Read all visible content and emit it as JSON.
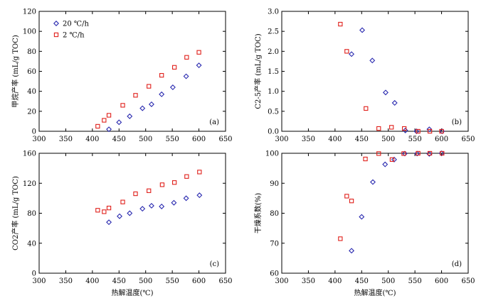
{
  "series_styles": [
    {
      "name": "20 ℃/h",
      "marker": "diamond",
      "color": "#2b2bb0"
    },
    {
      "name": "2 ℃/h",
      "marker": "square",
      "color": "#e0201b"
    }
  ],
  "chart_data": [
    {
      "id": "a",
      "type": "scatter",
      "panel_label": "(a)",
      "title": "",
      "xlabel": "",
      "ylabel": "甲烷产率 (mL/g TOC)",
      "xlim": [
        300,
        650
      ],
      "ylim": [
        0,
        120
      ],
      "xticks": [
        300,
        350,
        400,
        450,
        500,
        550,
        600,
        650
      ],
      "yticks": [
        0,
        20,
        40,
        60,
        80,
        100,
        120
      ],
      "legend": {
        "position": "top-left",
        "entries": [
          "20 ℃/h",
          "2 ℃/h"
        ]
      },
      "series": [
        {
          "name": "20 ℃/h",
          "x": [
            431,
            450,
            470,
            494,
            511,
            530,
            551,
            576,
            600
          ],
          "y": [
            2,
            9,
            15,
            23,
            27,
            37,
            44,
            55,
            66
          ]
        },
        {
          "name": "2 ℃/h",
          "x": [
            410,
            422,
            431,
            457,
            481,
            506,
            530,
            554,
            577,
            600
          ],
          "y": [
            5,
            11,
            16,
            26,
            36,
            45,
            56,
            64,
            74,
            79
          ]
        }
      ]
    },
    {
      "id": "b",
      "type": "scatter",
      "panel_label": "(b)",
      "title": "",
      "xlabel": "",
      "ylabel": "C2-5产率 (mL/g TOC)",
      "xlim": [
        300,
        650
      ],
      "ylim": [
        0,
        3
      ],
      "xticks": [
        300,
        350,
        400,
        450,
        500,
        550,
        600,
        650
      ],
      "yticks": [
        0.0,
        0.5,
        1.0,
        1.5,
        2.0,
        2.5,
        3.0
      ],
      "series": [
        {
          "name": "20 ℃/h",
          "x": [
            431,
            451,
            470,
            495,
            512,
            532,
            553,
            577,
            601
          ],
          "y": [
            1.93,
            2.53,
            1.77,
            0.97,
            0.71,
            0.02,
            0.0,
            0.05,
            0.0
          ]
        },
        {
          "name": "2 ℃/h",
          "x": [
            410,
            422,
            458,
            482,
            506,
            530,
            556,
            578,
            600
          ],
          "y": [
            2.68,
            2.0,
            0.57,
            0.07,
            0.1,
            0.07,
            0.0,
            0.0,
            0.0
          ]
        }
      ]
    },
    {
      "id": "c",
      "type": "scatter",
      "panel_label": "(c)",
      "title": "",
      "xlabel": "热解温度(℃)",
      "ylabel": "CO2产率 (mL/g TOC)",
      "xlim": [
        300,
        650
      ],
      "ylim": [
        0,
        160
      ],
      "xticks": [
        300,
        350,
        400,
        450,
        500,
        550,
        600,
        650
      ],
      "yticks": [
        0,
        40,
        80,
        120,
        160
      ],
      "series": [
        {
          "name": "20 ℃/h",
          "x": [
            431,
            451,
            470,
            494,
            511,
            530,
            553,
            576,
            601
          ],
          "y": [
            68,
            76,
            80,
            86,
            90,
            89,
            94,
            100,
            104
          ]
        },
        {
          "name": "2 ℃/h",
          "x": [
            410,
            422,
            431,
            457,
            481,
            506,
            531,
            554,
            577,
            601
          ],
          "y": [
            84,
            82,
            87,
            95,
            106,
            110,
            118,
            121,
            129,
            135
          ]
        }
      ]
    },
    {
      "id": "d",
      "type": "scatter",
      "panel_label": "(d)",
      "title": "",
      "xlabel": "热解温度(℃)",
      "ylabel": "干燥系数(%)",
      "xlim": [
        300,
        650
      ],
      "ylim": [
        60,
        100
      ],
      "xticks": [
        300,
        350,
        400,
        450,
        500,
        550,
        600,
        650
      ],
      "yticks": [
        60,
        70,
        80,
        90,
        100
      ],
      "series": [
        {
          "name": "20 ℃/h",
          "x": [
            431,
            450,
            471,
            494,
            511,
            531,
            554,
            577,
            600
          ],
          "y": [
            67.5,
            78.8,
            90.4,
            96.3,
            97.9,
            99.9,
            99.9,
            99.8,
            100
          ]
        },
        {
          "name": "2 ℃/h",
          "x": [
            410,
            422,
            431,
            457,
            482,
            507,
            529,
            556,
            578,
            601
          ],
          "y": [
            71.5,
            85.7,
            84.1,
            98.1,
            99.9,
            97.9,
            99.9,
            100,
            100,
            100
          ]
        }
      ]
    }
  ]
}
